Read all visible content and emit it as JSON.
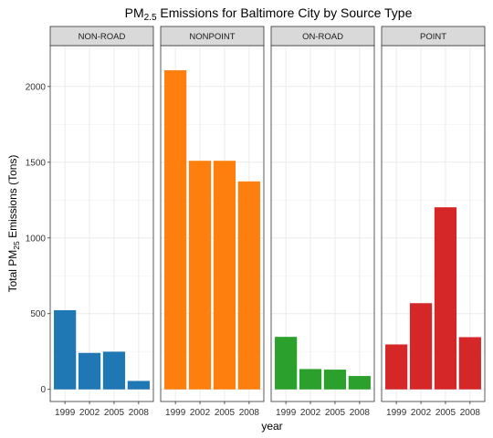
{
  "chart_data": {
    "type": "bar",
    "title": {
      "prefix": "PM",
      "subscript": "2.5",
      "suffix": " Emissions for Baltimore City by Source Type"
    },
    "xlabel": "year",
    "ylabel": {
      "prefix": "Total PM",
      "subscript": "25",
      "suffix": " Emissions (Tons)"
    },
    "categories": [
      "1999",
      "2002",
      "2005",
      "2008"
    ],
    "ylim": [
      -80,
      2270
    ],
    "yticks": [
      0,
      500,
      1000,
      1500,
      2000
    ],
    "grid": true,
    "legend": "none",
    "facets": [
      {
        "name": "NON-ROAD",
        "color": "#1f77b4",
        "values": [
          522.94,
          240.85,
          248.93,
          55.82
        ]
      },
      {
        "name": "NONPOINT",
        "color": "#ff7f0e",
        "values": [
          2107.63,
          1509.5,
          1509.5,
          1373.21
        ]
      },
      {
        "name": "ON-ROAD",
        "color": "#2ca02c",
        "values": [
          346.82,
          134.31,
          130.43,
          88.28
        ]
      },
      {
        "name": "POINT",
        "color": "#d62728",
        "values": [
          296.8,
          569.26,
          1202.49,
          344.98
        ]
      }
    ]
  }
}
